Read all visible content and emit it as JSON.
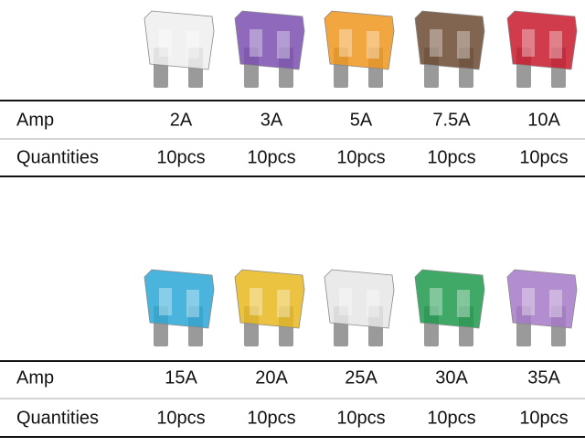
{
  "tables": [
    {
      "rows": [
        [
          "Amp",
          "2A",
          "3A",
          "5A",
          "7.5A",
          "10A"
        ],
        [
          "Quantities",
          "10pcs",
          "10pcs",
          "10pcs",
          "10pcs",
          "10pcs"
        ]
      ]
    },
    {
      "rows": [
        [
          "Amp",
          "15A",
          "20A",
          "25A",
          "30A",
          "35A"
        ],
        [
          "Quantities",
          "10pcs",
          "10pcs",
          "10pcs",
          "10pcs",
          "10pcs"
        ]
      ]
    }
  ]
}
